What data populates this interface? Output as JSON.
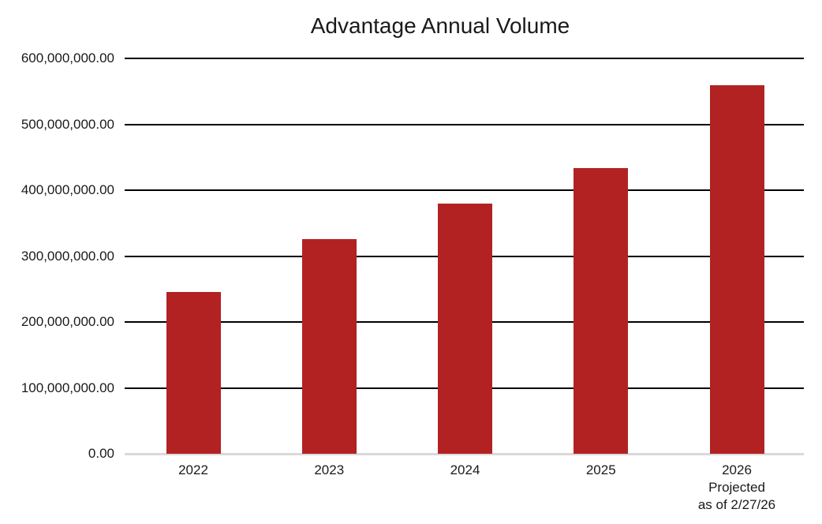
{
  "chart_data": {
    "type": "bar",
    "title": "Advantage Annual Volume",
    "categories": [
      {
        "label": "2022",
        "note_lines": []
      },
      {
        "label": "2023",
        "note_lines": []
      },
      {
        "label": "2024",
        "note_lines": []
      },
      {
        "label": "2025",
        "note_lines": []
      },
      {
        "label": "2026",
        "note_lines": [
          "Projected",
          "as of 2/27/26"
        ]
      }
    ],
    "values": [
      245000000,
      326000000,
      380000000,
      434000000,
      559000000
    ],
    "ylim": [
      0,
      600000000
    ],
    "yticks": [
      {
        "value": 0,
        "label": "0.00"
      },
      {
        "value": 100000000,
        "label": "100,000,000.00"
      },
      {
        "value": 200000000,
        "label": "200,000,000.00"
      },
      {
        "value": 300000000,
        "label": "300,000,000.00"
      },
      {
        "value": 400000000,
        "label": "400,000,000.00"
      },
      {
        "value": 500000000,
        "label": "500,000,000.00"
      },
      {
        "value": 600000000,
        "label": "600,000,000.00"
      }
    ],
    "xlabel": "",
    "ylabel": "",
    "grid": true,
    "legend_position": "none",
    "colors": {
      "bar": "#b22222",
      "gridline": "#000000",
      "axis_line": "#d9d9d9",
      "text": "#1a1a1a"
    }
  }
}
